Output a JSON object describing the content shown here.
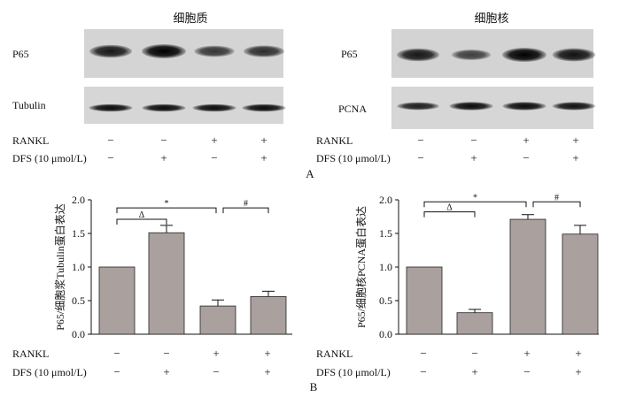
{
  "panel_a": {
    "label": "A",
    "left": {
      "title": "细胞质",
      "row_labels": [
        "P65",
        "Tubulin"
      ],
      "bands": [
        {
          "label": "P65",
          "intensity": [
            0.8,
            1.0,
            0.55,
            0.62
          ]
        },
        {
          "label": "Tubulin",
          "intensity": [
            0.9,
            0.9,
            0.9,
            0.9
          ]
        }
      ]
    },
    "right": {
      "title": "细胞核",
      "row_labels": [
        "P65",
        "PCNA"
      ],
      "bands": [
        {
          "label": "P65",
          "intensity": [
            0.8,
            0.45,
            1.0,
            0.85
          ]
        },
        {
          "label": "PCNA",
          "intensity": [
            0.75,
            0.9,
            0.9,
            0.85
          ]
        }
      ]
    },
    "treatments": {
      "rankl_label": "RANKL",
      "dfs_label": "DFS (10 μmol/L)",
      "rankl": [
        "−",
        "−",
        "+",
        "+"
      ],
      "dfs": [
        "−",
        "+",
        "−",
        "+"
      ]
    }
  },
  "panel_b": {
    "label": "B",
    "treatments": {
      "rankl_label": "RANKL",
      "dfs_label": "DFS (10 μmol/L)",
      "rankl": [
        "−",
        "−",
        "+",
        "+"
      ],
      "dfs": [
        "−",
        "+",
        "−",
        "+"
      ]
    }
  },
  "chart_data": [
    {
      "type": "bar",
      "ylabel": "P65/细胞浆Tubulin蛋白表达",
      "ylim": [
        0,
        2.0
      ],
      "yticks": [
        "0.0",
        "0.5",
        "1.0",
        "1.5",
        "2.0"
      ],
      "values": [
        1.0,
        1.51,
        0.42,
        0.56
      ],
      "errors": [
        0.0,
        0.11,
        0.09,
        0.08
      ],
      "bar_color": "#aaa19e",
      "brackets": [
        {
          "from": 0,
          "to": 1,
          "level": 1.71,
          "label": "Δ"
        },
        {
          "from": 0,
          "to": 2,
          "level": 1.88,
          "label": "*"
        },
        {
          "from": 2,
          "to": 3,
          "level": 1.88,
          "label": "#"
        }
      ]
    },
    {
      "type": "bar",
      "ylabel": "P65/细胞核PCNA蛋白表达",
      "ylim": [
        0,
        2.0
      ],
      "yticks": [
        "0.0",
        "0.5",
        "1.0",
        "1.5",
        "2.0"
      ],
      "values": [
        1.0,
        0.32,
        1.71,
        1.49
      ],
      "errors": [
        0.0,
        0.05,
        0.07,
        0.13
      ],
      "bar_color": "#aaa19e",
      "brackets": [
        {
          "from": 0,
          "to": 1,
          "level": 1.82,
          "label": "Δ"
        },
        {
          "from": 0,
          "to": 2,
          "level": 1.97,
          "label": "*"
        },
        {
          "from": 2,
          "to": 3,
          "level": 1.97,
          "label": "#"
        }
      ]
    }
  ]
}
